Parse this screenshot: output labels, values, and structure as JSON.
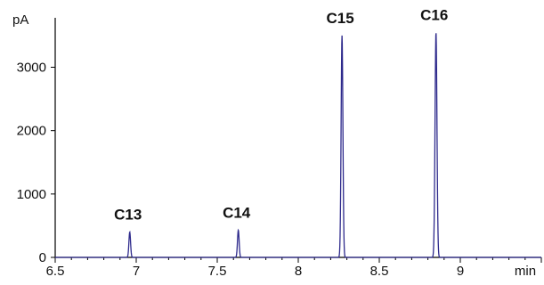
{
  "chart_data": {
    "type": "line",
    "ylabel": "pA",
    "xlabel": "min",
    "xlim": [
      6.5,
      9.5
    ],
    "ylim": [
      0,
      3780
    ],
    "x_ticks": [
      {
        "value": 6.5,
        "label": "6.5"
      },
      {
        "value": 7,
        "label": "7"
      },
      {
        "value": 7.5,
        "label": "7.5"
      },
      {
        "value": 8,
        "label": "8"
      },
      {
        "value": 8.5,
        "label": "8.5"
      },
      {
        "value": 9,
        "label": "9"
      }
    ],
    "y_ticks": [
      {
        "value": 0,
        "label": "0"
      },
      {
        "value": 1000,
        "label": "1000"
      },
      {
        "value": 2000,
        "label": "2000"
      },
      {
        "value": 3000,
        "label": "3000"
      }
    ],
    "peaks": [
      {
        "label": "C13",
        "x": 6.96,
        "height": 400,
        "width": 0.012
      },
      {
        "label": "C14",
        "x": 7.63,
        "height": 430,
        "width": 0.012
      },
      {
        "label": "C15",
        "x": 8.27,
        "height": 3500,
        "width": 0.013
      },
      {
        "label": "C16",
        "x": 8.85,
        "height": 3550,
        "width": 0.014
      }
    ],
    "baseline": 0,
    "line_color": "#2e2a8c",
    "grid": false
  }
}
